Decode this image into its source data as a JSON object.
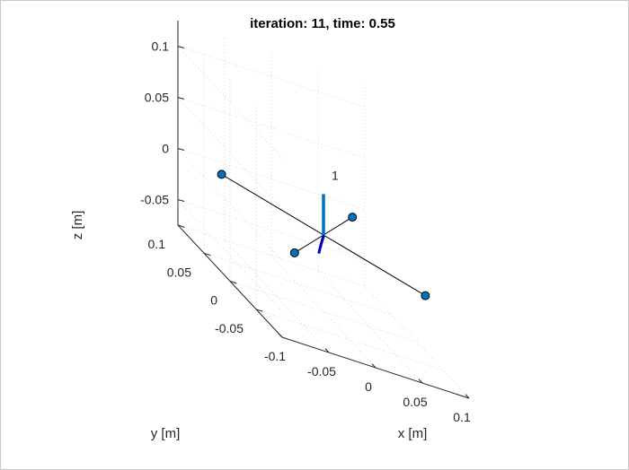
{
  "chart_data": {
    "type": "scatter3d",
    "title": "iteration: 11, time: 0.55",
    "xlabel": "x [m]",
    "ylabel": "y [m]",
    "zlabel": "z [m]",
    "xlim": [
      -0.1,
      0.1
    ],
    "ylim": [
      -0.1,
      0.1
    ],
    "zlim": [
      -0.075,
      0.125
    ],
    "x_ticks": [
      -0.1,
      -0.05,
      0,
      0.05,
      0.1
    ],
    "x_tick_labels": [
      "-0.1",
      "-0.05",
      "0",
      "0.05",
      "0.1"
    ],
    "y_ticks": [
      -0.05,
      0,
      0.05,
      0.1
    ],
    "y_tick_labels": [
      "-0.05",
      "0",
      "0.05",
      "0.1"
    ],
    "z_ticks": [
      -0.05,
      0,
      0.05,
      0.1
    ],
    "z_tick_labels": [
      "-0.05",
      "0",
      "0.05",
      "0.1"
    ],
    "grid": true,
    "vehicle_label": "1",
    "vehicle_center": [
      0,
      0,
      0
    ],
    "rotor_positions": [
      [
        0.07,
        -0.07,
        0
      ],
      [
        0.07,
        0.07,
        0
      ],
      [
        -0.07,
        0.07,
        0
      ],
      [
        -0.07,
        -0.07,
        0
      ]
    ],
    "heading_vector_tip": [
      0,
      0,
      0.04
    ],
    "trajectory": {
      "x": [
        -0.003,
        -0.0027,
        -0.0024,
        -0.0021,
        -0.0018,
        -0.0015,
        -0.0012,
        -0.0009,
        -0.0006,
        -0.0003,
        0
      ],
      "y": [
        0.003,
        0.0027,
        0.0024,
        0.0021,
        0.0018,
        0.0015,
        0.0012,
        0.0009,
        0.0006,
        0.0003,
        0
      ],
      "z": [
        -0.0195,
        -0.0173,
        -0.0152,
        -0.0132,
        -0.0113,
        -0.0095,
        -0.0078,
        -0.0061,
        -0.0045,
        -0.003,
        -0.0015
      ]
    },
    "colors": {
      "rotor": "#0072bd",
      "heading": "#0072bd",
      "trajectory": "#0000cc",
      "frame": "#000000",
      "grid": "#dcdcdc"
    }
  }
}
